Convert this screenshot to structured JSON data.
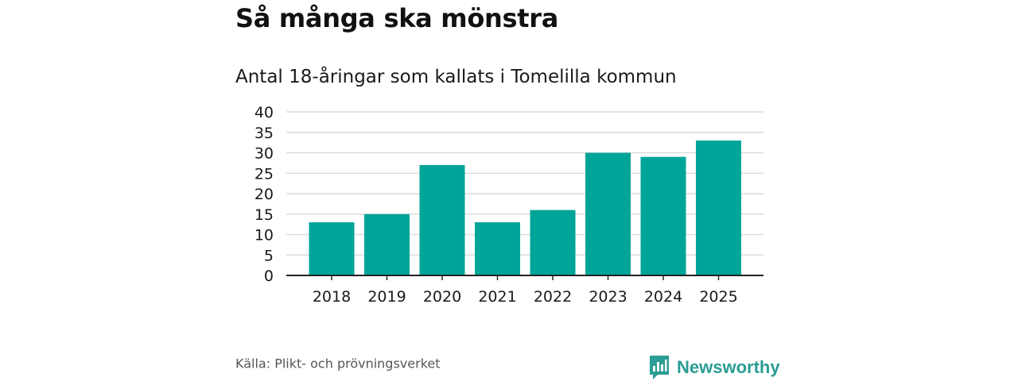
{
  "title": "Så många ska mönstra",
  "subtitle": "Antal 18-åringar som kallats i Tomelilla kommun",
  "source": "Källa: Plikt- och prövningsverket",
  "brand": {
    "name": "Newsworthy",
    "icon": "newsworthy-logo-icon",
    "color": "#2a9d94"
  },
  "colors": {
    "bar": "#00a59a",
    "grid": "#dcdcdc",
    "axis": "#222222"
  },
  "chart_data": {
    "type": "bar",
    "categories": [
      "2018",
      "2019",
      "2020",
      "2021",
      "2022",
      "2023",
      "2024",
      "2025"
    ],
    "values": [
      13,
      15,
      27,
      13,
      16,
      30,
      29,
      33
    ],
    "ylim": [
      0,
      40
    ],
    "yticks": [
      0,
      5,
      10,
      15,
      20,
      25,
      30,
      35,
      40
    ],
    "grid": true,
    "xlabel": "",
    "ylabel": ""
  }
}
